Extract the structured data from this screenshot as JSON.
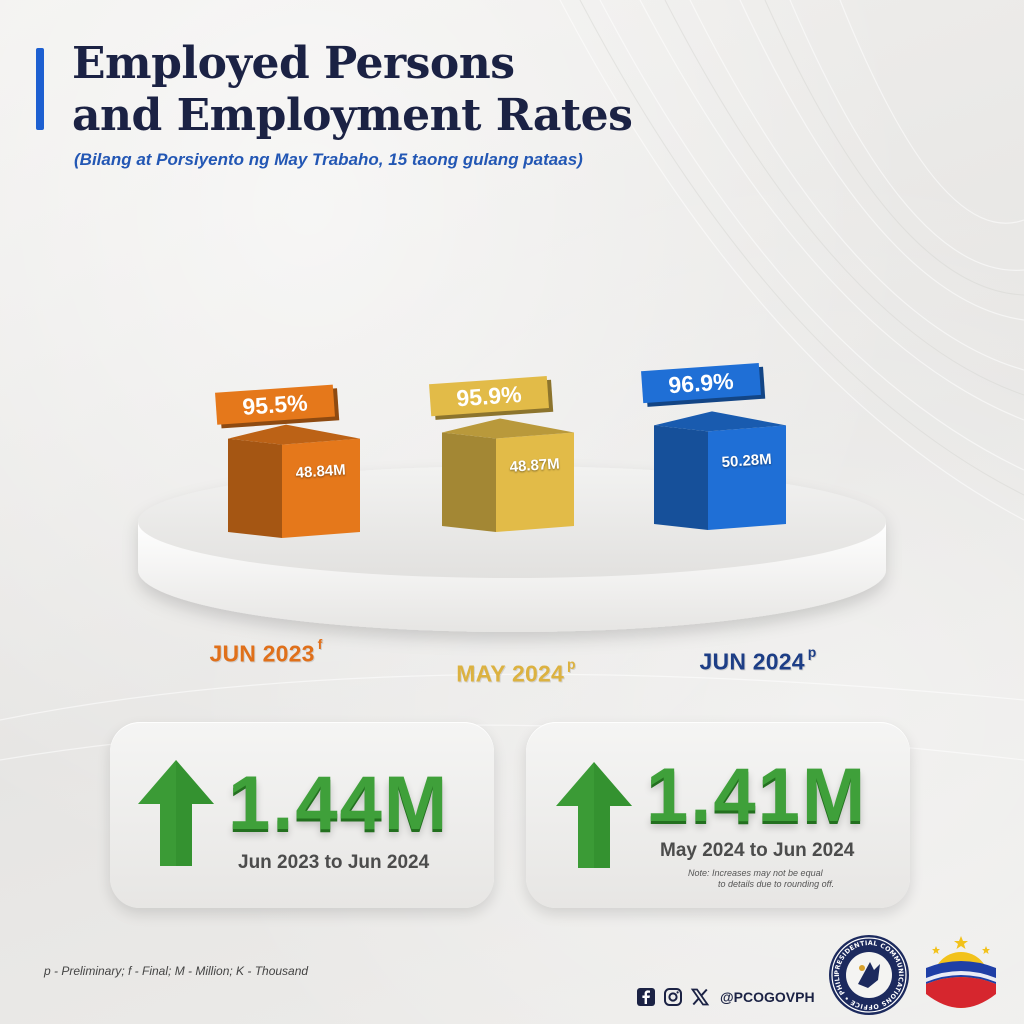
{
  "header": {
    "title_line1": "Employed Persons",
    "title_line2": "and Employment Rates",
    "subtitle": "(Bilang at Porsiyento ng May Trabaho, 15 taong gulang pataas)"
  },
  "chart_data": {
    "type": "bar",
    "title": "Employed Persons and Employment Rates",
    "subtitle": "(Bilang at Porsiyento ng May Trabaho, 15 taong gulang pataas)",
    "categories": [
      "JUN 2023",
      "MAY 2024",
      "JUN 2024"
    ],
    "category_marks": [
      "f",
      "p",
      "p"
    ],
    "series": [
      {
        "name": "",
        "values": [
          48.84,
          48.87,
          50.28
        ],
        "labels": [
          "48.84M",
          "48.87M",
          "50.28M"
        ]
      },
      {
        "name": "",
        "values": [
          95.5,
          95.9,
          96.9
        ],
        "labels": [
          "95.5%",
          "95.9%",
          "96.9%"
        ]
      }
    ],
    "colors": [
      "#e5781b",
      "#e2bb48",
      "#1f6fd6"
    ],
    "xlabel": "",
    "ylabel": "",
    "grid": false,
    "legend": "none"
  },
  "summary": {
    "cards": [
      {
        "value": "1.44M",
        "range": "Jun 2023 to Jun 2024",
        "note_line1": "",
        "note_line2": ""
      },
      {
        "value": "1.41M",
        "range": "May 2024 to Jun 2024",
        "note_line1": "Note: Increases may not be equal",
        "note_line2": "to details due to rounding off."
      }
    ],
    "arrow_color": "#3fa03a"
  },
  "footer": {
    "legend_note": "p - Preliminary; f - Final; M - Million; K - Thousand",
    "handle": "@PCOGOVPH",
    "icons": [
      "facebook-icon",
      "instagram-icon",
      "x-icon"
    ],
    "seal_text": "PRESIDENTIAL COMMUNICATIONS OFFICE • PHILIPPINES"
  }
}
